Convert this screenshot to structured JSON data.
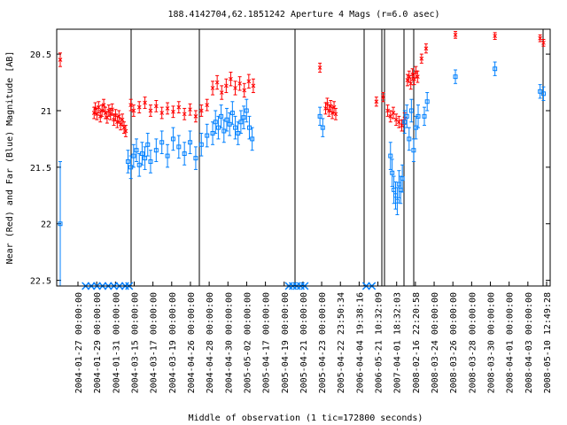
{
  "chart_data": {
    "type": "scatter",
    "title": "188.4142704,62.1851242   Aperture 4 Mags (r=6.0 asec)",
    "xlabel": "Middle of observation (1 tic=172800 seconds)",
    "ylabel": "Near (Red) and Far (Blue) Magnitude [AB]",
    "y_inverted": true,
    "ylim": [
      22.55,
      20.28
    ],
    "y_ticks": [
      20.5,
      21,
      21.5,
      22,
      22.5
    ],
    "y_tick_labels": [
      "20.5",
      "21",
      "21.5",
      "22",
      "22.5"
    ],
    "x_tick_labels": [
      "2004-01-27 00:00:00",
      "2004-01-29 00:00:00",
      "2004-01-31 00:00:00",
      "2004-03-15 00:00:00",
      "2004-03-17 00:00:00",
      "2004-03-19 00:00:00",
      "2004-04-26 00:00:00",
      "2004-04-28 00:00:00",
      "2004-04-30 00:00:00",
      "2005-05-02 00:00:00",
      "2005-04-17 00:00:00",
      "2005-04-19 00:00:00",
      "2005-04-21 00:00:00",
      "2005-04-23 00:00:00",
      "2005-04-22 23:50:34",
      "2006-04-04 19:38:16",
      "2006-05-21 10:32:09",
      "2007-04-01 18:32:03",
      "2008-02-16 22:20:58",
      "2008-03-24 00:00:00",
      "2008-03-26 00:00:00",
      "2008-03-28 00:00:00",
      "2008-03-30 00:00:00",
      "2008-04-01 00:00:00",
      "2008-04-03 00:00:00",
      "2008-05-10 12:49:28"
    ],
    "segment_boundaries_px": [],
    "grid": false,
    "legend": "none",
    "colors": {
      "near": "#ff0000",
      "far": "#0080ff",
      "frame": "#000000"
    },
    "series": [
      {
        "name": "Near (Red)",
        "marker": "x",
        "points": [
          [
            0.0,
            20.55,
            0.06
          ],
          [
            0.6,
            21.02,
            0.05
          ],
          [
            0.62,
            20.98,
            0.05
          ],
          [
            0.65,
            21.03,
            0.05
          ],
          [
            0.68,
            20.97,
            0.05
          ],
          [
            0.71,
            21.05,
            0.05
          ],
          [
            0.74,
            21.0,
            0.05
          ],
          [
            0.77,
            20.95,
            0.05
          ],
          [
            0.8,
            21.02,
            0.05
          ],
          [
            0.83,
            21.06,
            0.05
          ],
          [
            0.86,
            21.0,
            0.05
          ],
          [
            0.89,
            21.03,
            0.05
          ],
          [
            0.92,
            20.99,
            0.05
          ],
          [
            0.95,
            21.08,
            0.05
          ],
          [
            0.98,
            21.04,
            0.05
          ],
          [
            1.01,
            21.1,
            0.05
          ],
          [
            1.04,
            21.05,
            0.05
          ],
          [
            1.07,
            21.12,
            0.05
          ],
          [
            1.1,
            21.08,
            0.05
          ],
          [
            1.13,
            21.15,
            0.05
          ],
          [
            1.16,
            21.18,
            0.05
          ],
          [
            1.25,
            20.95,
            0.05
          ],
          [
            1.3,
            21.0,
            0.05
          ],
          [
            1.4,
            20.97,
            0.05
          ],
          [
            1.5,
            20.93,
            0.05
          ],
          [
            1.6,
            21.0,
            0.05
          ],
          [
            1.7,
            20.96,
            0.05
          ],
          [
            1.8,
            21.02,
            0.05
          ],
          [
            1.9,
            20.98,
            0.05
          ],
          [
            2.0,
            21.01,
            0.05
          ],
          [
            2.1,
            20.97,
            0.05
          ],
          [
            2.2,
            21.03,
            0.05
          ],
          [
            2.3,
            20.99,
            0.05
          ],
          [
            2.4,
            21.05,
            0.05
          ],
          [
            2.5,
            21.0,
            0.05
          ],
          [
            2.6,
            20.95,
            0.05
          ],
          [
            2.7,
            20.8,
            0.06
          ],
          [
            2.78,
            20.75,
            0.06
          ],
          [
            2.86,
            20.84,
            0.06
          ],
          [
            2.94,
            20.78,
            0.06
          ],
          [
            3.02,
            20.72,
            0.06
          ],
          [
            3.1,
            20.8,
            0.06
          ],
          [
            3.18,
            20.76,
            0.06
          ],
          [
            3.26,
            20.82,
            0.06
          ],
          [
            3.34,
            20.74,
            0.06
          ],
          [
            3.42,
            20.78,
            0.06
          ],
          [
            4.6,
            20.62,
            0.04
          ],
          [
            4.7,
            20.98,
            0.05
          ],
          [
            4.73,
            20.94,
            0.05
          ],
          [
            4.76,
            21.0,
            0.05
          ],
          [
            4.79,
            20.96,
            0.05
          ],
          [
            4.82,
            21.02,
            0.05
          ],
          [
            4.85,
            20.97,
            0.05
          ],
          [
            4.88,
            21.03,
            0.05
          ],
          [
            5.6,
            20.92,
            0.04
          ],
          [
            5.72,
            20.88,
            0.04
          ],
          [
            5.8,
            21.0,
            0.05
          ],
          [
            5.85,
            21.05,
            0.05
          ],
          [
            5.9,
            21.02,
            0.05
          ],
          [
            5.95,
            21.08,
            0.05
          ],
          [
            6.0,
            21.1,
            0.05
          ],
          [
            6.05,
            21.13,
            0.05
          ],
          [
            6.1,
            21.07,
            0.05
          ],
          [
            6.15,
            20.73,
            0.05
          ],
          [
            6.18,
            20.7,
            0.05
          ],
          [
            6.21,
            20.76,
            0.05
          ],
          [
            6.24,
            20.68,
            0.05
          ],
          [
            6.27,
            20.72,
            0.05
          ],
          [
            6.3,
            20.66,
            0.05
          ],
          [
            6.33,
            20.7,
            0.05
          ],
          [
            6.4,
            20.54,
            0.04
          ],
          [
            6.48,
            20.45,
            0.04
          ],
          [
            7.0,
            20.33,
            0.03
          ],
          [
            7.7,
            20.34,
            0.03
          ],
          [
            8.5,
            20.36,
            0.03
          ],
          [
            8.56,
            20.4,
            0.03
          ]
        ]
      },
      {
        "name": "Far (Blue)",
        "marker": "square",
        "points": [
          [
            0.0,
            22.0,
            0.55
          ],
          [
            1.2,
            21.45,
            0.1
          ],
          [
            1.25,
            21.5,
            0.1
          ],
          [
            1.3,
            21.4,
            0.1
          ],
          [
            1.35,
            21.35,
            0.1
          ],
          [
            1.4,
            21.48,
            0.1
          ],
          [
            1.45,
            21.38,
            0.1
          ],
          [
            1.5,
            21.42,
            0.1
          ],
          [
            1.55,
            21.3,
            0.1
          ],
          [
            1.6,
            21.45,
            0.1
          ],
          [
            1.7,
            21.35,
            0.1
          ],
          [
            1.8,
            21.28,
            0.1
          ],
          [
            1.9,
            21.4,
            0.1
          ],
          [
            2.0,
            21.25,
            0.1
          ],
          [
            2.1,
            21.32,
            0.1
          ],
          [
            2.2,
            21.38,
            0.1
          ],
          [
            2.3,
            21.28,
            0.1
          ],
          [
            2.4,
            21.42,
            0.1
          ],
          [
            2.5,
            21.3,
            0.1
          ],
          [
            2.6,
            21.22,
            0.1
          ],
          [
            2.7,
            21.2,
            0.1
          ],
          [
            2.75,
            21.1,
            0.1
          ],
          [
            2.8,
            21.15,
            0.1
          ],
          [
            2.85,
            21.05,
            0.1
          ],
          [
            2.9,
            21.18,
            0.1
          ],
          [
            2.95,
            21.08,
            0.1
          ],
          [
            3.0,
            21.12,
            0.1
          ],
          [
            3.05,
            21.02,
            0.1
          ],
          [
            3.1,
            21.15,
            0.1
          ],
          [
            3.15,
            21.2,
            0.1
          ],
          [
            3.2,
            21.1,
            0.1
          ],
          [
            3.25,
            21.06,
            0.1
          ],
          [
            3.3,
            21.0,
            0.1
          ],
          [
            3.35,
            21.15,
            0.1
          ],
          [
            3.4,
            21.25,
            0.1
          ],
          [
            4.6,
            21.05,
            0.08
          ],
          [
            4.65,
            21.15,
            0.08
          ],
          [
            5.85,
            21.4,
            0.12
          ],
          [
            5.88,
            21.55,
            0.12
          ],
          [
            5.91,
            21.7,
            0.12
          ],
          [
            5.94,
            21.75,
            0.12
          ],
          [
            5.97,
            21.8,
            0.12
          ],
          [
            6.0,
            21.65,
            0.12
          ],
          [
            6.03,
            21.7,
            0.12
          ],
          [
            6.06,
            21.6,
            0.12
          ],
          [
            6.1,
            21.1,
            0.1
          ],
          [
            6.14,
            21.05,
            0.1
          ],
          [
            6.18,
            21.25,
            0.1
          ],
          [
            6.22,
            21.0,
            0.1
          ],
          [
            6.26,
            21.35,
            0.1
          ],
          [
            6.3,
            21.15,
            0.1
          ],
          [
            6.34,
            21.05,
            0.1
          ],
          [
            6.45,
            21.05,
            0.08
          ],
          [
            6.5,
            20.92,
            0.08
          ],
          [
            7.0,
            20.7,
            0.06
          ],
          [
            7.7,
            20.63,
            0.06
          ],
          [
            8.5,
            20.83,
            0.06
          ],
          [
            8.56,
            20.85,
            0.06
          ]
        ]
      }
    ],
    "upper_limits": [
      0.45,
      0.55,
      0.65,
      0.75,
      0.85,
      0.95,
      1.05,
      1.15,
      1.22,
      4.05,
      4.12,
      4.19,
      4.26,
      4.33,
      5.42,
      5.52
    ]
  }
}
